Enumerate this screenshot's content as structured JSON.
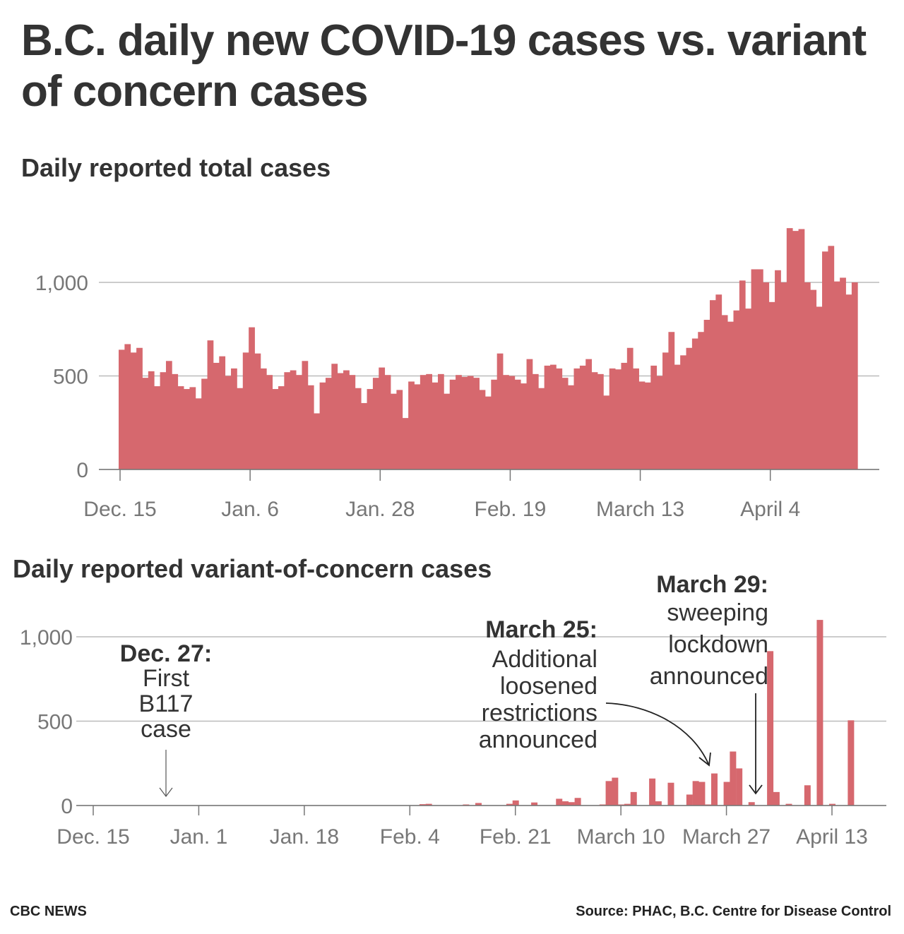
{
  "title": "B.C. daily new COVID-19 cases vs. variant of concern cases",
  "footer": {
    "credit": "CBC NEWS",
    "source": "Source: PHAC, B.C. Centre for Disease Control"
  },
  "colors": {
    "bar": "#d6686e",
    "grid": "#bbbbbb",
    "axis": "#777777"
  },
  "chart_data": [
    {
      "type": "bar",
      "title": "Daily reported total cases",
      "xlabel": "",
      "ylabel": "",
      "x_start": "Dec. 15",
      "ylim": [
        0,
        1300
      ],
      "yticks": [
        0,
        500,
        1000
      ],
      "ytick_labels": [
        "0",
        "500",
        "1,000"
      ],
      "xtick_labels": [
        "Dec. 15",
        "Jan. 6",
        "Jan. 28",
        "Feb. 19",
        "March 13",
        "April 4"
      ],
      "xtick_day_offsets": [
        0,
        22,
        44,
        66,
        88,
        110
      ],
      "grid": true,
      "values": [
        640,
        670,
        625,
        650,
        490,
        525,
        445,
        520,
        580,
        510,
        445,
        430,
        440,
        380,
        485,
        690,
        570,
        605,
        500,
        540,
        435,
        625,
        760,
        620,
        540,
        505,
        430,
        445,
        520,
        530,
        505,
        580,
        450,
        300,
        465,
        490,
        565,
        515,
        530,
        505,
        435,
        355,
        430,
        490,
        545,
        505,
        405,
        425,
        275,
        470,
        455,
        505,
        510,
        465,
        510,
        405,
        480,
        505,
        495,
        500,
        490,
        425,
        390,
        480,
        620,
        505,
        500,
        480,
        460,
        590,
        510,
        435,
        555,
        560,
        540,
        490,
        450,
        540,
        555,
        590,
        520,
        510,
        395,
        540,
        535,
        570,
        650,
        540,
        470,
        465,
        555,
        500,
        625,
        735,
        560,
        610,
        650,
        700,
        735,
        800,
        905,
        935,
        825,
        790,
        850,
        1010,
        860,
        1070,
        1070,
        1000,
        895,
        1065,
        1000,
        1290,
        1275,
        1285,
        1000,
        960,
        870,
        1165,
        1195,
        1005,
        1025,
        935,
        1000
      ]
    },
    {
      "type": "bar",
      "title": "Daily reported variant-of-concern cases",
      "xlabel": "",
      "ylabel": "",
      "x_start": "Dec. 15",
      "ylim": [
        0,
        1150
      ],
      "yticks": [
        0,
        500,
        1000
      ],
      "ytick_labels": [
        "0",
        "500",
        "1,000"
      ],
      "xtick_labels": [
        "Dec. 15",
        "Jan. 1",
        "Jan. 18",
        "Feb. 4",
        "Feb. 21",
        "March 10",
        "March 27",
        "April 13"
      ],
      "xtick_day_offsets": [
        0,
        17,
        34,
        51,
        68,
        85,
        102,
        119
      ],
      "grid": true,
      "points": [
        {
          "day": 53,
          "value": 8
        },
        {
          "day": 54,
          "value": 10
        },
        {
          "day": 60,
          "value": 5
        },
        {
          "day": 62,
          "value": 15
        },
        {
          "day": 67,
          "value": 10
        },
        {
          "day": 68,
          "value": 30
        },
        {
          "day": 71,
          "value": 18
        },
        {
          "day": 75,
          "value": 40
        },
        {
          "day": 76,
          "value": 25
        },
        {
          "day": 77,
          "value": 20
        },
        {
          "day": 78,
          "value": 45
        },
        {
          "day": 82,
          "value": 5
        },
        {
          "day": 83,
          "value": 145
        },
        {
          "day": 84,
          "value": 165
        },
        {
          "day": 85,
          "value": 5
        },
        {
          "day": 86,
          "value": 10
        },
        {
          "day": 87,
          "value": 80
        },
        {
          "day": 90,
          "value": 160
        },
        {
          "day": 91,
          "value": 25
        },
        {
          "day": 93,
          "value": 135
        },
        {
          "day": 96,
          "value": 65
        },
        {
          "day": 97,
          "value": 145
        },
        {
          "day": 98,
          "value": 140
        },
        {
          "day": 99,
          "value": 5
        },
        {
          "day": 100,
          "value": 190
        },
        {
          "day": 102,
          "value": 140
        },
        {
          "day": 103,
          "value": 320
        },
        {
          "day": 104,
          "value": 220
        },
        {
          "day": 106,
          "value": 20
        },
        {
          "day": 109,
          "value": 915
        },
        {
          "day": 110,
          "value": 80
        },
        {
          "day": 112,
          "value": 10
        },
        {
          "day": 115,
          "value": 120
        },
        {
          "day": 117,
          "value": 1100
        },
        {
          "day": 119,
          "value": 10
        },
        {
          "day": 122,
          "value": 505
        }
      ],
      "annotations": [
        {
          "heading": "Dec. 27:",
          "lines": [
            "First",
            "B117",
            "case"
          ],
          "day": 12
        },
        {
          "heading": "March 25:",
          "lines": [
            "Additional",
            "loosened",
            "restrictions",
            "announced"
          ],
          "day": 100
        },
        {
          "heading": "March 29:",
          "lines": [
            "sweeping",
            "lockdown",
            "announced"
          ],
          "day": 104
        }
      ]
    }
  ]
}
